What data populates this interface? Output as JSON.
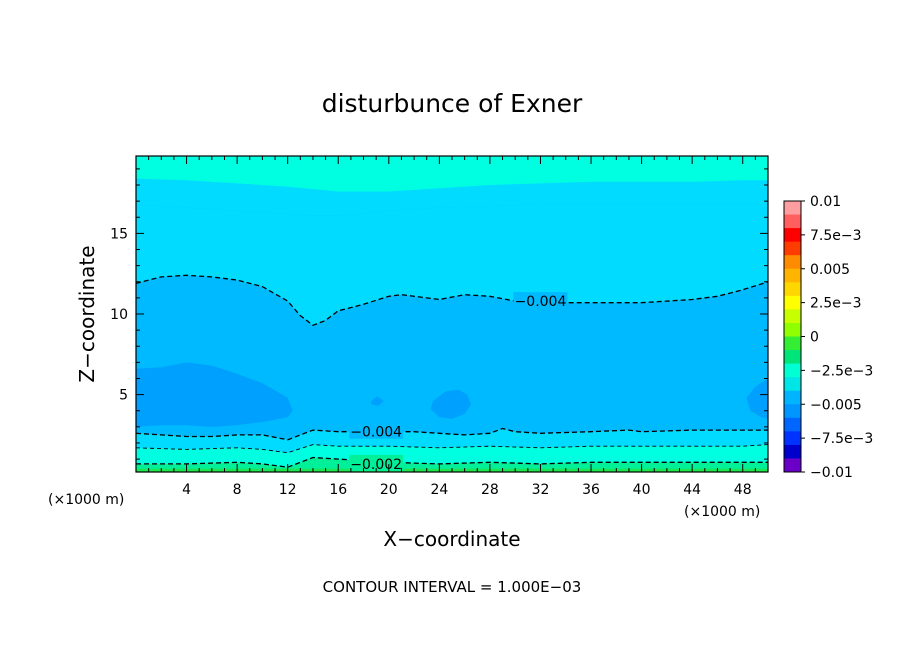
{
  "chart_data": {
    "type": "heatmap",
    "title": "disturbunce of Exner",
    "xlabel": "X−coordinate",
    "ylabel": "Z−coordinate",
    "x_unit": "(×1000 m)",
    "y_unit": "(×1000 m)",
    "xlim": [
      0,
      50
    ],
    "ylim": [
      0.2,
      19.8
    ],
    "x_ticks": [
      4,
      8,
      12,
      16,
      20,
      24,
      28,
      32,
      36,
      40,
      44,
      48
    ],
    "y_ticks": [
      5,
      10,
      15
    ],
    "footer": "CONTOUR INTERVAL = 1.000E−03",
    "colorbar": {
      "range": [
        -0.01,
        0.01
      ],
      "labels": [
        "0.01",
        "7.5e−3",
        "0.005",
        "2.5e−3",
        "0",
        "−2.5e−3",
        "−0.005",
        "−7.5e−3",
        "−0.01"
      ],
      "levels_top_to_bottom": [
        "#ff9ea0",
        "#ff5f5f",
        "#ff0000",
        "#ff3c00",
        "#ff8c00",
        "#ffb400",
        "#ffd700",
        "#ffff00",
        "#c8ff00",
        "#90ff00",
        "#33ee33",
        "#00e57a",
        "#00ffd2",
        "#00e6e6",
        "#00b4ff",
        "#0096ff",
        "#0066ff",
        "#0033ff",
        "#0000cc",
        "#6a00c8"
      ]
    },
    "fill_colors": {
      "below_-0.005": "#00a0ff",
      "-0.005_to_-0.004": "#00baff",
      "-0.004_to_-0.003": "#00dbff",
      "-0.003_to_-0.002": "#00ffe0",
      "-0.002_to_-0.001": "#00f09a",
      "above_-0.001": "#1de650"
    },
    "contours": [
      {
        "level": -0.004,
        "label": "−0.004",
        "label_at": [
          32,
          10.8
        ],
        "style": "dashed",
        "x": [
          0,
          2,
          4,
          6,
          8,
          10,
          12,
          13,
          14,
          15,
          16,
          18,
          20,
          21,
          24,
          26,
          28,
          30,
          32,
          36,
          40,
          44,
          46,
          48,
          50
        ],
        "z": [
          11.9,
          12.3,
          12.4,
          12.3,
          12.1,
          11.7,
          10.8,
          9.9,
          9.3,
          9.6,
          10.2,
          10.6,
          11.1,
          11.2,
          10.9,
          11.2,
          11.1,
          10.8,
          10.7,
          10.7,
          10.7,
          10.9,
          11.1,
          11.5,
          12.0
        ]
      },
      {
        "level": -0.004,
        "label": "−0.004",
        "label_at": [
          19,
          2.7
        ],
        "style": "dashed",
        "x": [
          0,
          2,
          4,
          6,
          8,
          10,
          12,
          14,
          16,
          18,
          20,
          22,
          24,
          26,
          28,
          29,
          30,
          32,
          36,
          39,
          40,
          44,
          48,
          50
        ],
        "z": [
          2.6,
          2.5,
          2.4,
          2.4,
          2.5,
          2.5,
          2.2,
          2.8,
          2.7,
          2.7,
          2.7,
          2.7,
          2.6,
          2.5,
          2.6,
          2.9,
          2.7,
          2.6,
          2.7,
          2.8,
          2.7,
          2.8,
          2.8,
          2.8
        ]
      },
      {
        "level": -0.003,
        "label": "",
        "style": "dashed-thin",
        "x": [
          0,
          4,
          8,
          10,
          12,
          14,
          16,
          20,
          24,
          28,
          32,
          36,
          40,
          44,
          48,
          50
        ],
        "z": [
          1.7,
          1.6,
          1.7,
          1.6,
          1.4,
          1.9,
          1.8,
          1.8,
          1.7,
          1.8,
          1.7,
          1.8,
          1.8,
          1.8,
          1.8,
          1.9
        ]
      },
      {
        "level": -0.002,
        "label": "−0.002",
        "label_at": [
          19,
          0.7
        ],
        "style": "dashed",
        "x": [
          0,
          4,
          8,
          10,
          12,
          14,
          16,
          20,
          24,
          28,
          32,
          36,
          40,
          44,
          48,
          50
        ],
        "z": [
          0.7,
          0.7,
          0.8,
          0.7,
          0.5,
          1.1,
          1.0,
          0.8,
          0.7,
          0.8,
          0.7,
          0.8,
          0.8,
          0.8,
          0.8,
          0.8
        ]
      }
    ],
    "minimum_regions": [
      {
        "x": [
          0,
          2,
          4,
          6,
          8,
          10,
          12,
          12.4,
          12,
          10,
          8,
          6,
          4,
          2,
          0
        ],
        "z": [
          6.6,
          6.7,
          7.0,
          6.8,
          6.3,
          5.7,
          4.8,
          4.0,
          3.6,
          3.3,
          3.1,
          3.0,
          3.1,
          3.1,
          3.0
        ]
      },
      {
        "x": [
          18.6,
          19.1,
          19.6,
          19.2,
          18.6
        ],
        "z": [
          4.6,
          4.9,
          4.6,
          4.3,
          4.4
        ]
      },
      {
        "x": [
          23.5,
          24.5,
          25.5,
          26.2,
          26.5,
          26,
          25,
          24,
          23.3
        ],
        "z": [
          4.6,
          5.2,
          5.3,
          5.0,
          4.4,
          3.8,
          3.5,
          3.6,
          4.1
        ]
      },
      {
        "x": [
          50,
          49,
          48.3,
          48.6,
          49.5,
          50
        ],
        "z": [
          6.0,
          5.5,
          4.8,
          4.0,
          3.6,
          3.5
        ]
      }
    ],
    "upper_bands": [
      {
        "level": -0.003,
        "x": [
          0,
          4,
          8,
          12,
          16,
          20,
          24,
          28,
          32,
          36,
          40,
          44,
          48,
          50
        ],
        "z": [
          18.4,
          18.3,
          18.1,
          17.9,
          17.6,
          17.6,
          17.8,
          18.0,
          18.1,
          18.2,
          18.2,
          18.2,
          18.3,
          18.3
        ]
      },
      {
        "level": -0.004,
        "x": [
          0,
          4,
          8,
          12,
          14,
          16,
          20,
          24,
          28,
          32,
          36,
          40,
          44,
          48,
          50
        ],
        "z": [
          16.8,
          16.6,
          16.4,
          16.2,
          16.1,
          16.1,
          16.4,
          16.6,
          16.7,
          16.8,
          16.8,
          16.8,
          16.8,
          16.8,
          16.8
        ]
      }
    ]
  }
}
